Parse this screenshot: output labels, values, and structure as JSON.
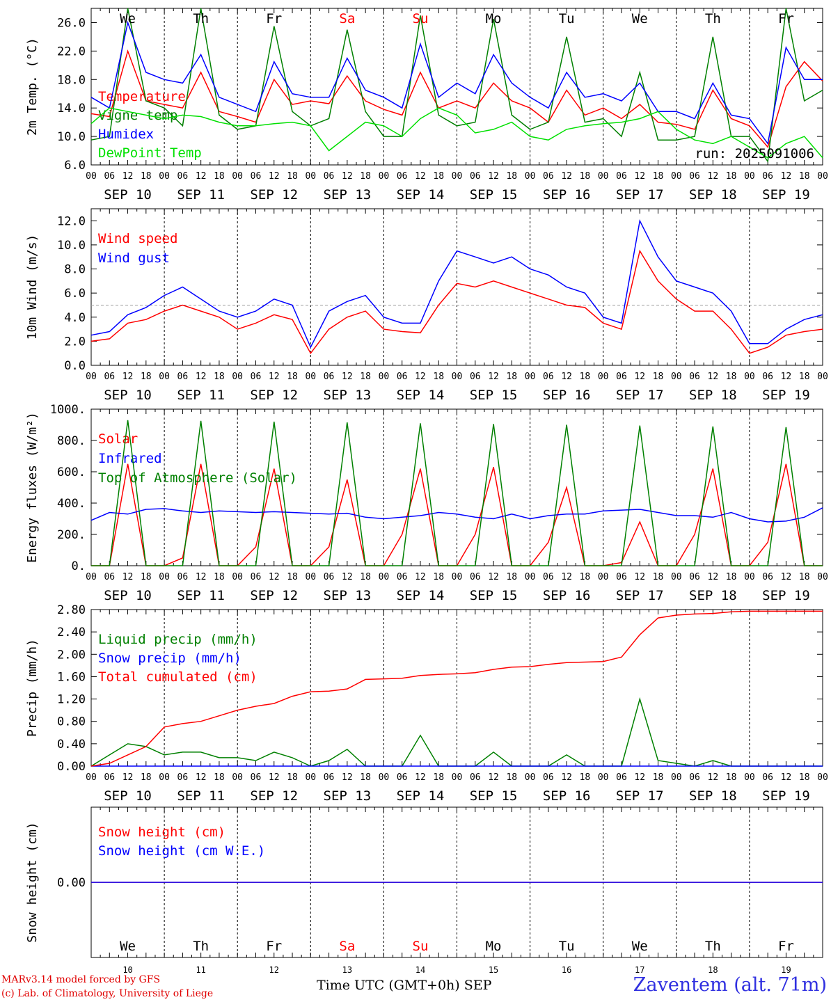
{
  "chart_data": [
    {
      "type": "line",
      "id": "temp",
      "ylabel": "2m Temp. (°C)",
      "ylim": [
        6,
        28
      ],
      "yticks": [
        "6.0",
        "10.0",
        "14.0",
        "18.0",
        "22.0",
        "26.0"
      ],
      "ytick_values": [
        6,
        10,
        14,
        18,
        22,
        26
      ],
      "x": [
        0,
        6,
        12,
        18,
        24,
        30,
        36,
        42,
        48,
        54,
        60,
        66,
        72,
        78,
        84,
        90,
        96,
        102,
        108,
        114,
        120,
        126,
        132,
        138,
        144,
        150,
        156,
        162,
        168,
        174,
        180,
        186,
        192,
        198,
        204,
        210,
        216,
        222,
        228,
        234,
        240
      ],
      "annotation": "run: 2025091006",
      "series": [
        {
          "name": "Temperature",
          "color": "#ff0000",
          "values": [
            13.2,
            12.8,
            22.0,
            15.0,
            14.5,
            14.0,
            19.0,
            13.5,
            12.8,
            12.0,
            18.0,
            14.5,
            15.0,
            14.6,
            18.5,
            15.0,
            13.8,
            13.0,
            19.0,
            14.0,
            15.0,
            14.0,
            17.5,
            15.0,
            14.0,
            12.0,
            16.5,
            13.0,
            14.0,
            12.5,
            14.5,
            12.0,
            11.7,
            11.0,
            16.5,
            12.5,
            11.5,
            8.5,
            17.0,
            20.5,
            17.8
          ]
        },
        {
          "name": "Vigne temp",
          "color": "#008000",
          "values": [
            9.5,
            10.0,
            28.0,
            15.0,
            14.0,
            11.5,
            28.0,
            13.0,
            11.0,
            11.5,
            25.5,
            13.5,
            11.5,
            12.5,
            25.0,
            13.5,
            10.0,
            10.0,
            27.0,
            13.0,
            11.5,
            12.0,
            26.5,
            13.0,
            11.0,
            12.0,
            24.0,
            12.0,
            12.5,
            10.0,
            19.0,
            9.5,
            9.5,
            10.0,
            24.0,
            10.0,
            10.0,
            6.5,
            28.0,
            15.0,
            16.5
          ]
        },
        {
          "name": "Humidex",
          "color": "#0000ff",
          "values": [
            15.5,
            14.0,
            26.0,
            19.0,
            18.0,
            17.5,
            21.5,
            15.5,
            14.5,
            13.5,
            20.5,
            16.0,
            15.5,
            15.5,
            21.0,
            16.5,
            15.5,
            14.0,
            23.0,
            15.5,
            17.5,
            16.0,
            21.5,
            17.5,
            15.5,
            14.0,
            19.0,
            15.5,
            16.0,
            15.0,
            17.5,
            13.5,
            13.5,
            12.5,
            17.5,
            13.0,
            12.5,
            9.0,
            22.5,
            18.0,
            18.0
          ]
        },
        {
          "name": "DewPoint Temp",
          "color": "#00e000",
          "values": [
            11.8,
            14.0,
            13.5,
            13.0,
            12.5,
            13.0,
            12.8,
            12.0,
            11.5,
            11.5,
            11.8,
            12.0,
            11.5,
            8.0,
            10.0,
            12.0,
            11.5,
            10.0,
            12.5,
            14.0,
            13.0,
            10.5,
            11.0,
            12.0,
            10.0,
            9.5,
            11.0,
            11.5,
            11.8,
            12.0,
            12.5,
            13.5,
            11.0,
            9.5,
            9.0,
            10.0,
            8.5,
            7.0,
            9.0,
            10.0,
            7.0
          ]
        }
      ]
    },
    {
      "type": "line",
      "id": "wind",
      "ylabel": "10m Wind (m/s)",
      "ylim": [
        0,
        13
      ],
      "yticks": [
        "0.0",
        "2.0",
        "4.0",
        "6.0",
        "8.0",
        "10.0",
        "12.0"
      ],
      "ytick_values": [
        0,
        2,
        4,
        6,
        8,
        10,
        12
      ],
      "reference_line": 5.0,
      "x": [
        0,
        6,
        12,
        18,
        24,
        30,
        36,
        42,
        48,
        54,
        60,
        66,
        72,
        78,
        84,
        90,
        96,
        102,
        108,
        114,
        120,
        126,
        132,
        138,
        144,
        150,
        156,
        162,
        168,
        174,
        180,
        186,
        192,
        198,
        204,
        210,
        216,
        222,
        228,
        234,
        240
      ],
      "series": [
        {
          "name": "Wind speed",
          "color": "#ff0000",
          "values": [
            2.0,
            2.2,
            3.5,
            3.8,
            4.5,
            5.0,
            4.5,
            4.0,
            3.0,
            3.5,
            4.2,
            3.8,
            1.0,
            3.0,
            4.0,
            4.5,
            3.0,
            2.8,
            2.7,
            5.0,
            6.8,
            6.5,
            7.0,
            6.5,
            6.0,
            5.5,
            5.0,
            4.8,
            3.5,
            3.0,
            9.5,
            7.0,
            5.5,
            4.5,
            4.5,
            3.0,
            1.0,
            1.5,
            2.5,
            2.8,
            3.0
          ]
        },
        {
          "name": "Wind gust",
          "color": "#0000ff",
          "values": [
            2.5,
            2.8,
            4.2,
            4.8,
            5.8,
            6.5,
            5.5,
            4.5,
            4.0,
            4.5,
            5.5,
            5.0,
            1.5,
            4.5,
            5.3,
            5.8,
            4.0,
            3.5,
            3.5,
            7.0,
            9.5,
            9.0,
            8.5,
            9.0,
            8.0,
            7.5,
            6.5,
            6.0,
            4.0,
            3.5,
            12.0,
            9.0,
            7.0,
            6.5,
            6.0,
            4.5,
            1.8,
            1.8,
            3.0,
            3.8,
            4.2
          ]
        }
      ]
    },
    {
      "type": "line",
      "id": "energy",
      "ylabel": "Energy fluxes (W/m²)",
      "ylim": [
        0,
        1000
      ],
      "yticks": [
        "0.",
        "200.",
        "400.",
        "600.",
        "800.",
        "1000."
      ],
      "ytick_values": [
        0,
        200,
        400,
        600,
        800,
        1000
      ],
      "x": [
        0,
        6,
        12,
        18,
        24,
        30,
        36,
        42,
        48,
        54,
        60,
        66,
        72,
        78,
        84,
        90,
        96,
        102,
        108,
        114,
        120,
        126,
        132,
        138,
        144,
        150,
        156,
        162,
        168,
        174,
        180,
        186,
        192,
        198,
        204,
        210,
        216,
        222,
        228,
        234,
        240
      ],
      "series": [
        {
          "name": "Solar",
          "color": "#ff0000",
          "values": [
            0,
            0,
            650,
            0,
            0,
            50,
            650,
            0,
            0,
            120,
            620,
            0,
            0,
            120,
            550,
            0,
            0,
            200,
            620,
            0,
            0,
            200,
            630,
            0,
            0,
            150,
            500,
            0,
            0,
            20,
            280,
            0,
            0,
            200,
            620,
            0,
            0,
            150,
            650,
            0,
            0
          ]
        },
        {
          "name": "Infrared",
          "color": "#0000ff",
          "values": [
            290,
            340,
            330,
            360,
            365,
            350,
            340,
            350,
            345,
            340,
            345,
            340,
            335,
            330,
            335,
            310,
            300,
            310,
            320,
            340,
            330,
            310,
            300,
            330,
            300,
            320,
            330,
            330,
            350,
            355,
            360,
            340,
            320,
            320,
            310,
            340,
            300,
            280,
            285,
            310,
            370
          ]
        },
        {
          "name": "Top of Atmosphere (Solar)",
          "color": "#008000",
          "values": [
            0,
            0,
            930,
            0,
            0,
            0,
            925,
            0,
            0,
            0,
            920,
            0,
            0,
            0,
            915,
            0,
            0,
            0,
            910,
            0,
            0,
            0,
            905,
            0,
            0,
            0,
            900,
            0,
            0,
            0,
            895,
            0,
            0,
            0,
            890,
            0,
            0,
            0,
            885,
            0,
            0
          ]
        }
      ]
    },
    {
      "type": "line",
      "id": "precip",
      "ylabel": "Precip (mm/h)",
      "ylim": [
        0,
        2.8
      ],
      "yticks": [
        "0.00",
        "0.40",
        "0.80",
        "1.20",
        "1.60",
        "2.00",
        "2.40",
        "2.80"
      ],
      "ytick_values": [
        0,
        0.4,
        0.8,
        1.2,
        1.6,
        2.0,
        2.4,
        2.8
      ],
      "x": [
        0,
        6,
        12,
        18,
        24,
        30,
        36,
        42,
        48,
        54,
        60,
        66,
        72,
        78,
        84,
        90,
        96,
        102,
        108,
        114,
        120,
        126,
        132,
        138,
        144,
        150,
        156,
        162,
        168,
        174,
        180,
        186,
        192,
        198,
        204,
        210,
        216,
        222,
        228,
        234,
        240
      ],
      "series": [
        {
          "name": "Liquid precip (mm/h)",
          "color": "#008000",
          "values": [
            0,
            0.2,
            0.4,
            0.35,
            0.2,
            0.25,
            0.25,
            0.15,
            0.15,
            0.1,
            0.25,
            0.15,
            0,
            0.1,
            0.3,
            0,
            0,
            0,
            0.55,
            0,
            0,
            0,
            0.25,
            0,
            0,
            0,
            0.2,
            0,
            0,
            0,
            1.2,
            0.1,
            0.05,
            0,
            0.1,
            0,
            0,
            0,
            0,
            0,
            0
          ]
        },
        {
          "name": "Snow precip (mm/h)",
          "color": "#0000ff",
          "values": [
            0,
            0,
            0,
            0,
            0,
            0,
            0,
            0,
            0,
            0,
            0,
            0,
            0,
            0,
            0,
            0,
            0,
            0,
            0,
            0,
            0,
            0,
            0,
            0,
            0,
            0,
            0,
            0,
            0,
            0,
            0,
            0,
            0,
            0,
            0,
            0,
            0,
            0,
            0,
            0,
            0
          ]
        },
        {
          "name": "Total cumulated (cm)",
          "color": "#ff0000",
          "values": [
            0,
            0.05,
            0.2,
            0.35,
            0.7,
            0.76,
            0.8,
            0.9,
            1.0,
            1.07,
            1.12,
            1.25,
            1.33,
            1.34,
            1.38,
            1.55,
            1.56,
            1.57,
            1.62,
            1.64,
            1.65,
            1.67,
            1.73,
            1.77,
            1.78,
            1.82,
            1.85,
            1.86,
            1.87,
            1.95,
            2.35,
            2.65,
            2.7,
            2.72,
            2.73,
            2.76,
            2.77,
            2.77,
            2.77,
            2.77,
            2.77
          ]
        }
      ]
    },
    {
      "type": "line",
      "id": "snow",
      "ylabel": "Snow height (cm)",
      "yticks": [
        "0.00"
      ],
      "ytick_values": [
        0
      ],
      "ylim": [
        -1,
        1
      ],
      "x": [
        0,
        240
      ],
      "series": [
        {
          "name": "Snow height (cm)",
          "color": "#ff0000",
          "values": [
            0,
            0
          ]
        },
        {
          "name": "Snow height (cm W.E.)",
          "color": "#0000ff",
          "values": [
            0,
            0
          ]
        }
      ]
    }
  ],
  "hour_labels": [
    "00",
    "06",
    "12",
    "18"
  ],
  "date_labels": [
    "SEP 10",
    "SEP 11",
    "SEP 12",
    "SEP 13",
    "SEP 14",
    "SEP 15",
    "SEP 16",
    "SEP 17",
    "SEP 18",
    "SEP 19"
  ],
  "weekdays": [
    {
      "label": "We",
      "color": "#000000"
    },
    {
      "label": "Th",
      "color": "#000000"
    },
    {
      "label": "Fr",
      "color": "#000000"
    },
    {
      "label": "Sa",
      "color": "#ff0000"
    },
    {
      "label": "Su",
      "color": "#ff0000"
    },
    {
      "label": "Mo",
      "color": "#000000"
    },
    {
      "label": "Tu",
      "color": "#000000"
    },
    {
      "label": "We",
      "color": "#000000"
    },
    {
      "label": "Th",
      "color": "#000000"
    },
    {
      "label": "Fr",
      "color": "#000000"
    }
  ],
  "day_numbers": [
    "10",
    "11",
    "12",
    "13",
    "14",
    "15",
    "16",
    "17",
    "18",
    "19"
  ],
  "final_hour_label": "00",
  "footer": {
    "model_line": "MARv3.14 model forced by GFS",
    "credit_line": "(c) Lab. of Climatology, University of Liege",
    "x_axis_title": "Time UTC (GMT+0h)",
    "month": "SEP",
    "station": "Zaventem (alt. 71m)"
  }
}
